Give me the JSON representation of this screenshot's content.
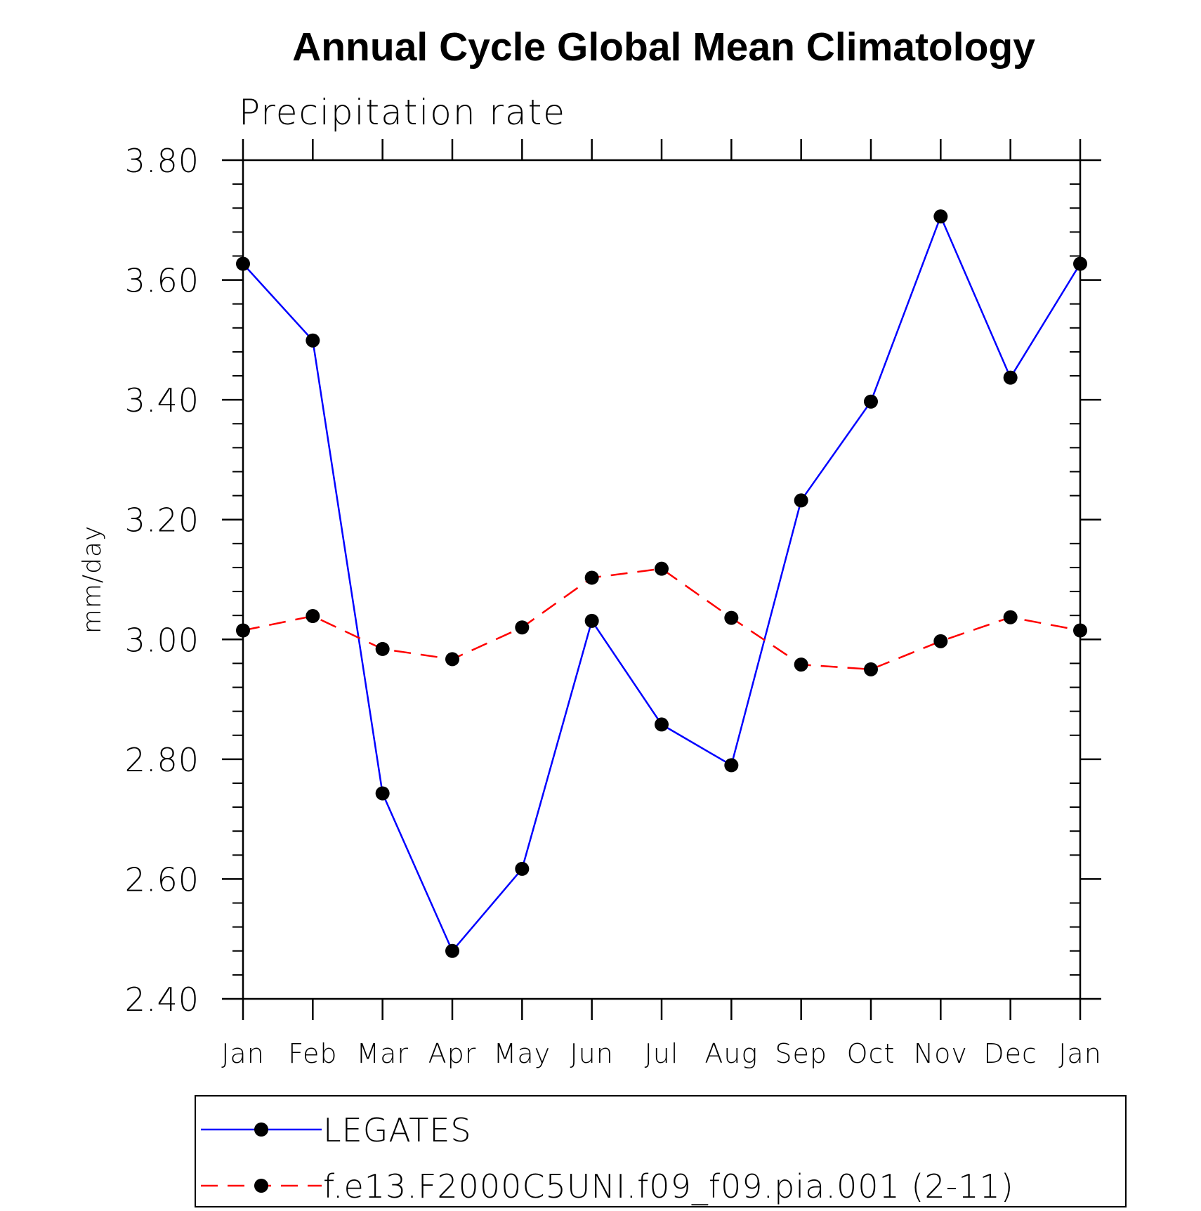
{
  "chart_data": {
    "type": "line",
    "title": "Annual Cycle Global Mean Climatology",
    "subtitle": "Precipitation rate",
    "ylabel": "mm/day",
    "xlabel": "",
    "ylim": [
      2.4,
      3.8
    ],
    "yticks": [
      "2.40",
      "2.60",
      "2.80",
      "3.00",
      "3.20",
      "3.40",
      "3.60",
      "3.80"
    ],
    "categories": [
      "Jan",
      "Feb",
      "Mar",
      "Apr",
      "May",
      "Jun",
      "Jul",
      "Aug",
      "Sep",
      "Oct",
      "Nov",
      "Dec",
      "Jan"
    ],
    "grid": false,
    "legend_position": "bottom",
    "series": [
      {
        "name": "LEGATES",
        "color": "#0000ff",
        "line_style": "solid",
        "marker": "filled-circle",
        "values": [
          3.627,
          3.499,
          2.743,
          2.48,
          2.617,
          3.031,
          2.858,
          2.79,
          3.232,
          3.397,
          3.706,
          3.437,
          3.627
        ]
      },
      {
        "name": "f.e13.F2000C5UNI.f09_f09.pia.001 (2-11)",
        "color": "#ff0000",
        "line_style": "dashed",
        "marker": "filled-circle",
        "values": [
          3.015,
          3.039,
          2.984,
          2.967,
          3.02,
          3.103,
          3.118,
          3.036,
          2.958,
          2.95,
          2.997,
          3.037,
          3.015
        ]
      }
    ]
  }
}
